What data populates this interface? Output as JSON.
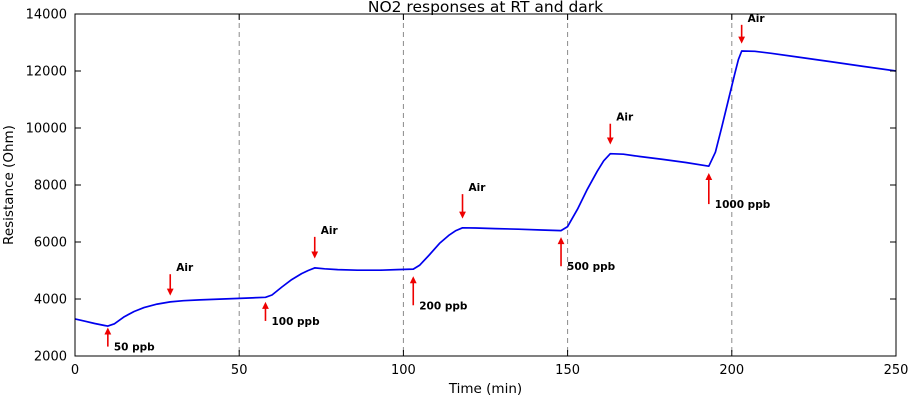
{
  "chart_data": {
    "type": "line",
    "title": "NO2 responses at RT and dark",
    "xlabel": "Time (min)",
    "ylabel": "Resistance (Ohm)",
    "xlim": [
      0,
      250
    ],
    "ylim": [
      2000,
      14000
    ],
    "xticks": [
      0,
      50,
      100,
      150,
      200,
      250
    ],
    "yticks": [
      2000,
      4000,
      6000,
      8000,
      10000,
      12000,
      14000
    ],
    "grid_x": [
      50,
      100,
      150,
      200
    ],
    "grid_color": "#8a8a8a",
    "axis_color": "#000000",
    "annotation_color": "#ee0000",
    "series": [
      {
        "name": "NO2 response",
        "color": "#0000ee",
        "points": [
          [
            0,
            3300
          ],
          [
            3,
            3220
          ],
          [
            6,
            3140
          ],
          [
            9,
            3070
          ],
          [
            10,
            3050
          ],
          [
            12,
            3130
          ],
          [
            15,
            3380
          ],
          [
            18,
            3560
          ],
          [
            21,
            3700
          ],
          [
            25,
            3820
          ],
          [
            29,
            3900
          ],
          [
            33,
            3940
          ],
          [
            38,
            3970
          ],
          [
            45,
            4000
          ],
          [
            52,
            4030
          ],
          [
            58,
            4060
          ],
          [
            60,
            4140
          ],
          [
            63,
            4420
          ],
          [
            66,
            4680
          ],
          [
            69,
            4890
          ],
          [
            71,
            5000
          ],
          [
            73,
            5090
          ],
          [
            76,
            5060
          ],
          [
            80,
            5030
          ],
          [
            86,
            5010
          ],
          [
            93,
            5010
          ],
          [
            98,
            5030
          ],
          [
            103,
            5050
          ],
          [
            105,
            5190
          ],
          [
            108,
            5560
          ],
          [
            111,
            5950
          ],
          [
            114,
            6250
          ],
          [
            116,
            6400
          ],
          [
            118,
            6500
          ],
          [
            122,
            6490
          ],
          [
            128,
            6470
          ],
          [
            135,
            6450
          ],
          [
            142,
            6420
          ],
          [
            148,
            6400
          ],
          [
            150,
            6540
          ],
          [
            153,
            7150
          ],
          [
            156,
            7850
          ],
          [
            159,
            8480
          ],
          [
            161,
            8850
          ],
          [
            163,
            9100
          ],
          [
            167,
            9080
          ],
          [
            172,
            9000
          ],
          [
            179,
            8900
          ],
          [
            186,
            8790
          ],
          [
            193,
            8660
          ],
          [
            195,
            9150
          ],
          [
            197,
            10050
          ],
          [
            199,
            11000
          ],
          [
            201,
            11950
          ],
          [
            202,
            12400
          ],
          [
            203,
            12700
          ],
          [
            207,
            12690
          ],
          [
            212,
            12620
          ],
          [
            220,
            12490
          ],
          [
            230,
            12330
          ],
          [
            240,
            12160
          ],
          [
            250,
            12000
          ]
        ]
      }
    ],
    "annotations": [
      {
        "label": "50 ppb",
        "x": 10,
        "tail_y": 2330,
        "tip_y": 3000
      },
      {
        "label": "Air",
        "x": 29,
        "tail_y": 4870,
        "tip_y": 4120
      },
      {
        "label": "100 ppb",
        "x": 58,
        "tail_y": 3230,
        "tip_y": 3900
      },
      {
        "label": "Air",
        "x": 73,
        "tail_y": 6180,
        "tip_y": 5420
      },
      {
        "label": "200 ppb",
        "x": 103,
        "tail_y": 3780,
        "tip_y": 4800
      },
      {
        "label": "Air",
        "x": 118,
        "tail_y": 7680,
        "tip_y": 6820
      },
      {
        "label": "500 ppb",
        "x": 148,
        "tail_y": 5150,
        "tip_y": 6170
      },
      {
        "label": "Air",
        "x": 163,
        "tail_y": 10150,
        "tip_y": 9420
      },
      {
        "label": "1000 ppb",
        "x": 193,
        "tail_y": 7330,
        "tip_y": 8420
      },
      {
        "label": "Air",
        "x": 203,
        "tail_y": 13620,
        "tip_y": 12960
      }
    ]
  }
}
